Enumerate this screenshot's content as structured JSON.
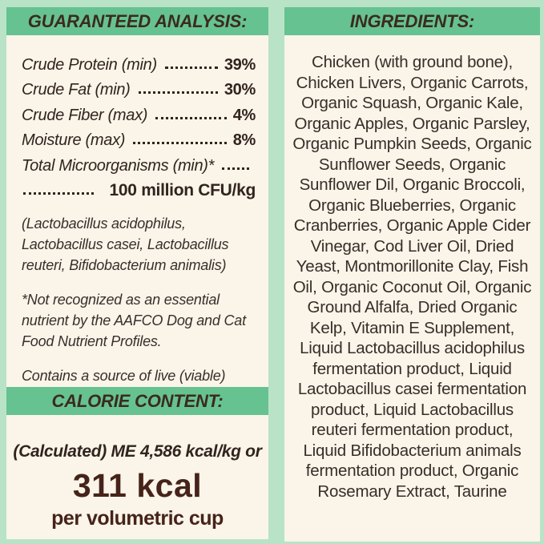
{
  "colors": {
    "background_mint": "#b8e3c7",
    "panel_cream": "#faf4e9",
    "header_bar_green": "#66c291",
    "heading_text_brown": "#3b2a1f",
    "body_text": "#31241d",
    "accent_maroon": "#46231a"
  },
  "left_panel": {
    "analysis": {
      "title": "GUARANTEED ANALYSIS:",
      "rows": [
        {
          "label": "Crude Protein (min)",
          "value": "39%"
        },
        {
          "label": "Crude Fat (min)",
          "value": "30%"
        },
        {
          "label": "Crude Fiber (max)",
          "value": "4%"
        },
        {
          "label": "Moisture (max)",
          "value": "8%"
        }
      ],
      "micro_label": "Total Microorganisms (min)*",
      "micro_value": "100 million CFU/kg",
      "notes": [
        "(Lactobacillus acidophilus, Lactobacillus casei, Lactobacillus reuteri, Bifidobacterium animalis)",
        "*Not recognized as an essential nutrient by the AAFCO Dog and Cat Food Nutrient Profiles.",
        "Contains a source of live (viable) naturally occurring microorganisms"
      ]
    },
    "calorie": {
      "title": "CALORIE CONTENT:",
      "line1": "(Calculated) ME 4,586 kcal/kg or",
      "kcal": "311 kcal",
      "unit": "per volumetric cup"
    }
  },
  "right_panel": {
    "title": "INGREDIENTS:",
    "ingredients": "Chicken (with ground bone), Chicken Livers, Organic Carrots, Organic Squash, Organic Kale, Organic Apples, Organic Parsley, Organic Pumpkin Seeds, Organic Sunflower Seeds, Organic Sunflower Dil, Organic Broccoli, Organic Blueberries, Organic Cranberries, Organic Apple Cider Vinegar, Cod Liver Oil, Dried Yeast, Montmorillonite Clay, Fish Oil, Organic Coconut Oil, Organic Ground Alfalfa, Dried Organic Kelp, Vitamin E Supplement, Liquid Lactobacillus acidophilus fermentation product, Liquid Lactobacillus casei fermentation product, Liquid Lactobacillus reuteri fermentation product, Liquid Bifidobacterium animals fermentation product, Organic Rosemary Extract, Taurine"
  }
}
